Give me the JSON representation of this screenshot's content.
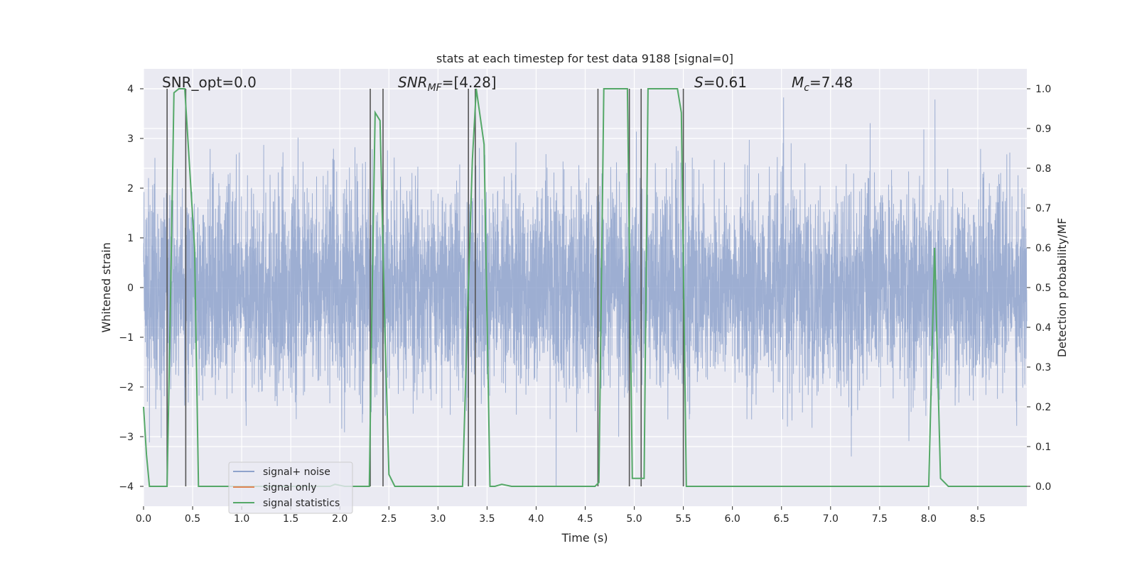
{
  "chart_data": {
    "type": "line",
    "title": "stats at each timestep for test data 9188 [signal=0]",
    "xlabel": "Time (s)",
    "ylabel": "Whitened strain",
    "y2label": "Detection probability/MF",
    "xlim": [
      0.0,
      9.0
    ],
    "ylim": [
      -4.4,
      4.4
    ],
    "y2lim": [
      -0.05,
      1.05
    ],
    "xticks": [
      "0.0",
      "0.5",
      "1.0",
      "1.5",
      "2.0",
      "2.5",
      "3.0",
      "3.5",
      "4.0",
      "4.5",
      "5.0",
      "5.5",
      "6.0",
      "6.5",
      "7.0",
      "7.5",
      "8.0",
      "8.5"
    ],
    "yticks": [
      "4",
      "3",
      "2",
      "1",
      "0",
      "−1",
      "−2",
      "−3",
      "−4"
    ],
    "y2ticks": [
      "1.0",
      "0.9",
      "0.8",
      "0.7",
      "0.6",
      "0.5",
      "0.4",
      "0.3",
      "0.2",
      "0.1",
      "0.0"
    ],
    "grid": true,
    "legend_position": "lower-left",
    "annotations": {
      "snr_opt": "SNR_opt=0.0",
      "snr_mf_main": "SNR",
      "snr_mf_sub": "MF",
      "snr_mf_value": "=[4.28]",
      "s_main": "S",
      "s_value": "=0.61",
      "mc_main": "M",
      "mc_sub": "c",
      "mc_value": "=7.48"
    },
    "series": [
      {
        "name": "signal+ noise",
        "color": "#8fa3cc",
        "noise_amplitude_std": 1.0,
        "y_range": [
          -4.0,
          4.0
        ]
      },
      {
        "name": "signal only",
        "color": "#dd8452",
        "values": []
      },
      {
        "name": "signal statistics",
        "color": "#55a868",
        "axis": "right",
        "x": [
          0.0,
          0.03,
          0.06,
          0.24,
          0.27,
          0.31,
          0.36,
          0.42,
          0.47,
          0.52,
          0.56,
          0.66,
          0.72,
          0.9,
          1.5,
          1.9,
          1.95,
          2.05,
          2.3,
          2.33,
          2.36,
          2.41,
          2.46,
          2.5,
          2.56,
          2.65,
          3.0,
          3.25,
          3.31,
          3.35,
          3.39,
          3.43,
          3.47,
          3.53,
          3.58,
          3.65,
          3.75,
          4.0,
          4.5,
          4.6,
          4.64,
          4.69,
          4.74,
          4.93,
          4.98,
          5.04,
          5.1,
          5.14,
          5.44,
          5.48,
          5.53,
          5.6,
          5.7,
          6.0,
          7.0,
          7.95,
          8.0,
          8.06,
          8.12,
          8.2,
          8.3,
          9.0
        ],
        "y": [
          0.2,
          0.08,
          0.0,
          0.0,
          0.4,
          0.99,
          1.0,
          1.0,
          0.8,
          0.6,
          0.0,
          0.0,
          0.0,
          0.0,
          0.0,
          0.0,
          0.005,
          0.0,
          0.0,
          0.5,
          0.94,
          0.92,
          0.38,
          0.03,
          0.0,
          0.0,
          0.0,
          0.0,
          0.5,
          0.82,
          1.0,
          0.93,
          0.86,
          0.0,
          0.0,
          0.005,
          0.0,
          0.0,
          0.0,
          0.0,
          0.01,
          1.0,
          1.0,
          1.0,
          0.02,
          0.02,
          0.02,
          1.0,
          1.0,
          0.94,
          0.0,
          0.0,
          0.0,
          0.0,
          0.0,
          0.0,
          0.0,
          0.6,
          0.02,
          0.0,
          0.0,
          0.0
        ]
      }
    ],
    "vertical_lines": {
      "color": "#555555",
      "x": [
        0.24,
        0.43,
        2.31,
        2.44,
        3.31,
        3.38,
        4.63,
        4.95,
        5.07,
        5.5
      ]
    }
  }
}
